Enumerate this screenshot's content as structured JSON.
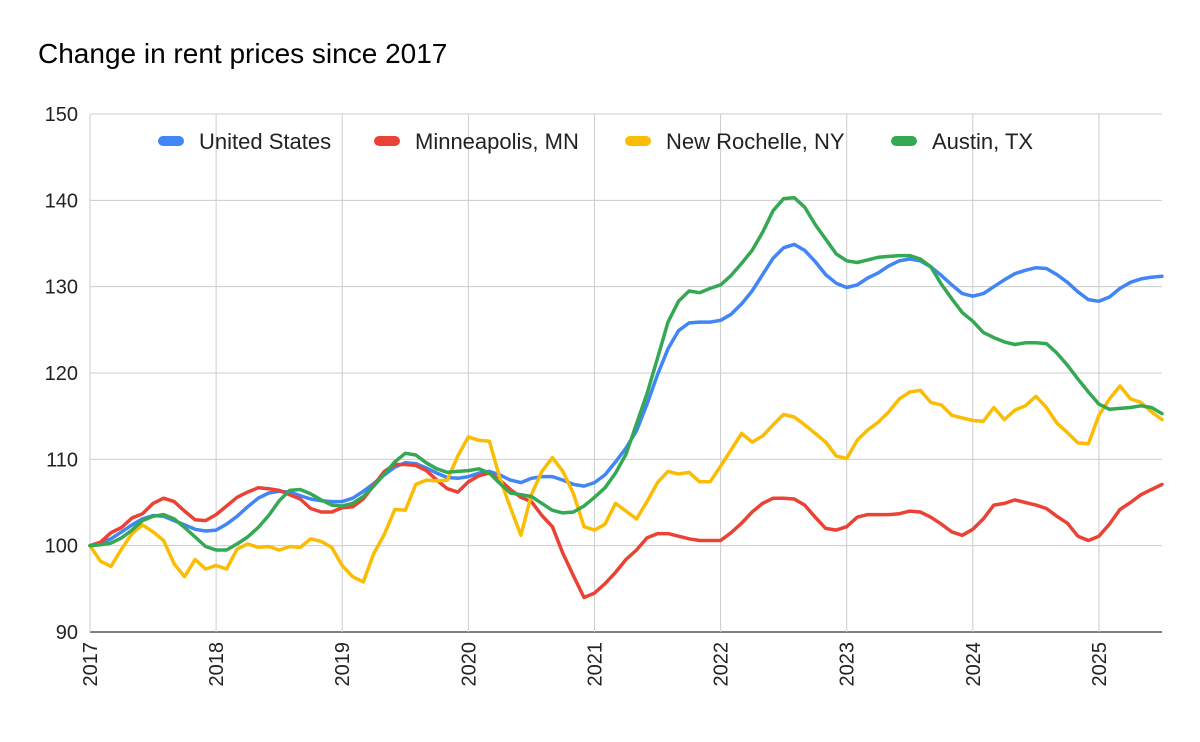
{
  "chart_data": {
    "type": "line",
    "title": "Change in rent prices since 2017",
    "xlabel": "",
    "ylabel": "",
    "xlim": [
      2017.0,
      2025.5
    ],
    "ylim": [
      90,
      150
    ],
    "yticks": [
      90,
      100,
      110,
      120,
      130,
      140,
      150
    ],
    "xticks": [
      "2017",
      "2018",
      "2019",
      "2020",
      "2021",
      "2022",
      "2023",
      "2024",
      "2025"
    ],
    "grid": true,
    "legend_position": "top",
    "x_step_months": 1,
    "series": [
      {
        "name": "United States",
        "color": "#4285F4",
        "values": [
          100,
          100.3,
          100.8,
          101.6,
          102.4,
          103.1,
          103.5,
          103.4,
          102.9,
          102.4,
          101.9,
          101.7,
          101.8,
          102.5,
          103.4,
          104.5,
          105.5,
          106.1,
          106.3,
          106.2,
          105.8,
          105.4,
          105.2,
          105.1,
          105.1,
          105.5,
          106.3,
          107.2,
          108.2,
          109.1,
          109.6,
          109.5,
          109,
          108.4,
          107.9,
          107.8,
          108.0,
          108.4,
          108.6,
          108.2,
          107.6,
          107.3,
          107.8,
          108.0,
          108.0,
          107.6,
          107.1,
          106.9,
          107.3,
          108.2,
          109.7,
          111.3,
          113.3,
          116.4,
          119.8,
          122.8,
          124.9,
          125.8,
          125.9,
          125.9,
          126.1,
          126.8,
          128.0,
          129.5,
          131.4,
          133.3,
          134.5,
          134.9,
          134.2,
          132.9,
          131.4,
          130.4,
          129.9,
          130.2,
          131.0,
          131.6,
          132.4,
          133.0,
          133.2,
          133.0,
          132.3,
          131.3,
          130.2,
          129.2,
          128.9,
          129.2,
          130.0,
          130.8,
          131.5,
          131.9,
          132.2,
          132.1,
          131.4,
          130.5,
          129.4,
          128.5,
          128.3,
          128.8,
          129.8,
          130.5,
          130.9,
          131.1,
          131.2
        ]
      },
      {
        "name": "Minneapolis, MN",
        "color": "#EA4335",
        "values": [
          100,
          100.4,
          101.5,
          102.1,
          103.2,
          103.7,
          104.9,
          105.5,
          105.1,
          104,
          103,
          102.9,
          103.6,
          104.6,
          105.6,
          106.2,
          106.7,
          106.6,
          106.4,
          105.9,
          105.4,
          104.3,
          103.9,
          103.9,
          104.4,
          104.5,
          105.4,
          107,
          108.6,
          109.4,
          109.4,
          109.3,
          108.7,
          107.6,
          106.6,
          106.2,
          107.4,
          108.1,
          108.4,
          107.6,
          106.5,
          105.6,
          105.1,
          103.5,
          102.2,
          99.1,
          96.5,
          94.0,
          94.5,
          95.6,
          96.9,
          98.4,
          99.5,
          100.9,
          101.4,
          101.4,
          101.1,
          100.8,
          100.6,
          100.6,
          100.6,
          101.5,
          102.6,
          103.9,
          104.9,
          105.5,
          105.5,
          105.4,
          104.7,
          103.3,
          102.0,
          101.8,
          102.2,
          103.3,
          103.6,
          103.6,
          103.6,
          103.7,
          104.0,
          103.9,
          103.3,
          102.5,
          101.6,
          101.2,
          101.9,
          103.1,
          104.7,
          104.9,
          105.3,
          105.0,
          104.7,
          104.3,
          103.4,
          102.6,
          101.1,
          100.6,
          101.1,
          102.5,
          104.2,
          105.0,
          105.9,
          106.5,
          107.1
        ]
      },
      {
        "name": "New Rochelle, NY",
        "color": "#FBBC04",
        "values": [
          100,
          98.2,
          97.6,
          99.6,
          101.4,
          102.4,
          101.6,
          100.6,
          97.9,
          96.4,
          98.4,
          97.3,
          97.7,
          97.3,
          99.6,
          100.2,
          99.8,
          99.9,
          99.5,
          99.9,
          99.8,
          100.8,
          100.5,
          99.8,
          97.7,
          96.4,
          95.8,
          99.1,
          101.3,
          104.2,
          104.1,
          107.1,
          107.6,
          107.5,
          107.6,
          110.4,
          112.6,
          112.2,
          112.1,
          107.8,
          104.4,
          101.2,
          105.9,
          108.6,
          110.2,
          108.6,
          106.0,
          102.2,
          101.8,
          102.5,
          104.9,
          104.0,
          103.1,
          105.1,
          107.3,
          108.6,
          108.3,
          108.5,
          107.4,
          107.4,
          109.2,
          111.1,
          113.0,
          112.0,
          112.7,
          114.0,
          115.2,
          114.9,
          114.0,
          113.0,
          112.0,
          110.4,
          110.1,
          112.2,
          113.4,
          114.3,
          115.5,
          117.0,
          117.8,
          118.0,
          116.6,
          116.3,
          115.1,
          114.8,
          114.5,
          114.4,
          116.0,
          114.6,
          115.7,
          116.2,
          117.3,
          116.0,
          114.2,
          113.1,
          111.9,
          111.8,
          115.1,
          117.0,
          118.5,
          117.0,
          116.6,
          115.5,
          114.6
        ]
      },
      {
        "name": "Austin, TX",
        "color": "#34A853",
        "values": [
          100,
          100.1,
          100.3,
          100.9,
          101.8,
          102.9,
          103.4,
          103.6,
          103.1,
          102.1,
          101.0,
          99.9,
          99.5,
          99.5,
          100.2,
          101.0,
          102.1,
          103.5,
          105.2,
          106.4,
          106.5,
          106.0,
          105.3,
          104.7,
          104.6,
          104.9,
          105.7,
          106.9,
          108.3,
          109.7,
          110.7,
          110.5,
          109.6,
          108.9,
          108.5,
          108.6,
          108.7,
          108.9,
          108.4,
          107.2,
          106.1,
          105.9,
          105.7,
          104.9,
          104.1,
          103.8,
          103.9,
          104.6,
          105.6,
          106.7,
          108.4,
          110.6,
          114.1,
          117.6,
          121.7,
          125.9,
          128.3,
          129.5,
          129.3,
          129.8,
          130.2,
          131.3,
          132.7,
          134.2,
          136.3,
          138.8,
          140.2,
          140.3,
          139.2,
          137.2,
          135.5,
          133.8,
          133.0,
          132.8,
          133.1,
          133.4,
          133.5,
          133.6,
          133.6,
          133.2,
          132.3,
          130.3,
          128.6,
          127.0,
          126.0,
          124.7,
          124.1,
          123.6,
          123.3,
          123.5,
          123.5,
          123.4,
          122.3,
          120.9,
          119.3,
          117.8,
          116.4,
          115.8,
          115.9,
          116.0,
          116.2,
          116.0,
          115.3
        ]
      }
    ]
  }
}
